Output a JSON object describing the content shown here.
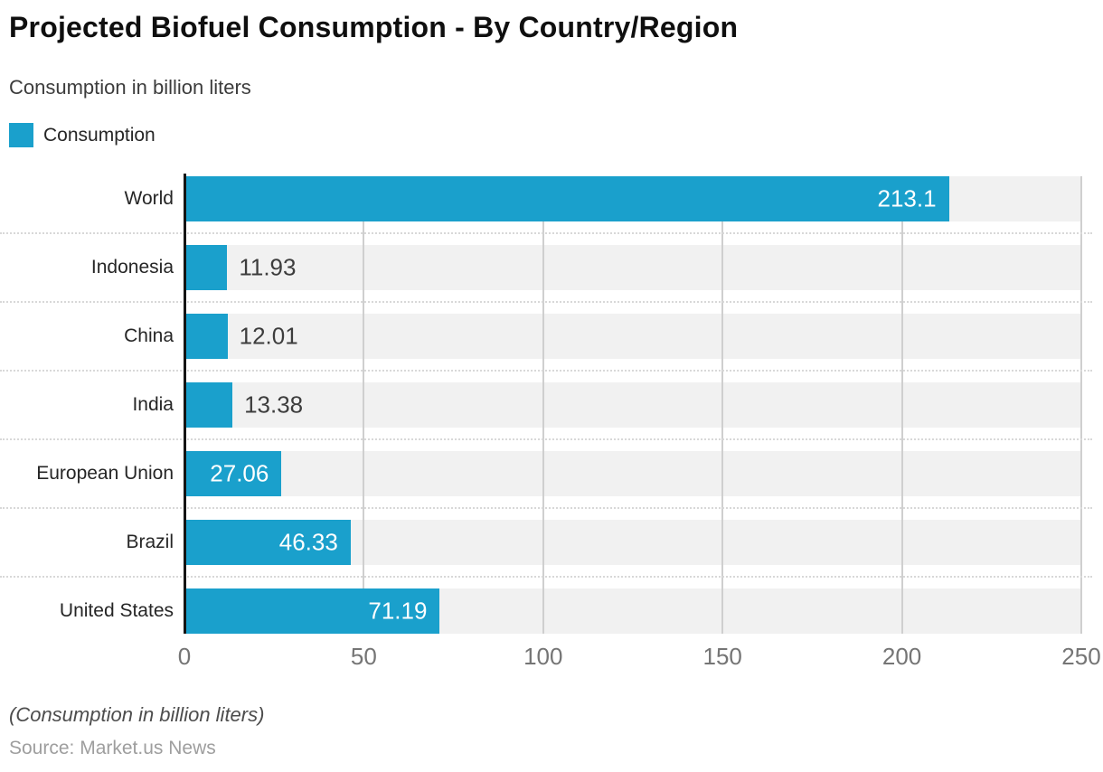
{
  "header": {
    "title": "Projected Biofuel Consumption - By Country/Region",
    "subtitle": "Consumption in billion liters"
  },
  "legend": {
    "label": "Consumption",
    "color": "#1AA0CC"
  },
  "footer": {
    "note": "(Consumption in billion liters)",
    "source": "Source: Market.us News"
  },
  "chart_data": {
    "type": "bar",
    "orientation": "horizontal",
    "title": "Projected Biofuel Consumption - By Country/Region",
    "subtitle": "Consumption in billion liters",
    "series_name": "Consumption",
    "categories": [
      "World",
      "Indonesia",
      "China",
      "India",
      "European Union",
      "Brazil",
      "United States"
    ],
    "values": [
      213.1,
      11.93,
      12.01,
      13.38,
      27.06,
      46.33,
      71.19
    ],
    "value_labels": [
      "213.1",
      "11.93",
      "12.01",
      "13.38",
      "27.06",
      "46.33",
      "71.19"
    ],
    "xlim": [
      0,
      250
    ],
    "x_ticks": [
      0,
      50,
      100,
      150,
      200,
      250
    ],
    "grid": true,
    "legend_position": "top-left",
    "bar_color": "#1AA0CC",
    "row_band_color": "#F1F1F1",
    "gridline_color": "#CFCFCF",
    "axis_line_color": "#141414"
  }
}
